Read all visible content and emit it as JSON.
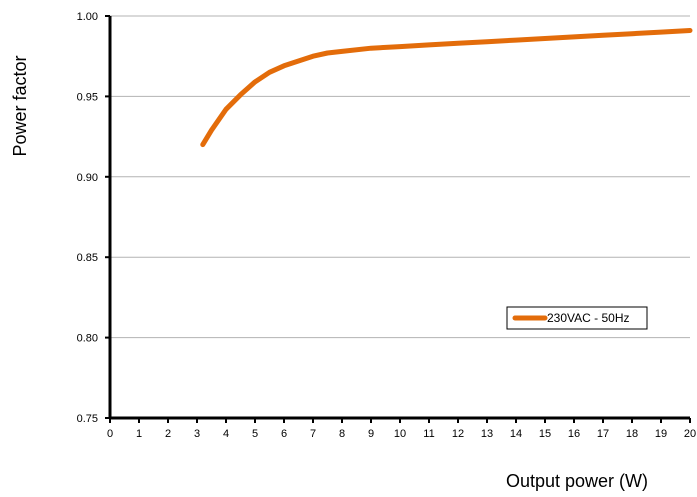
{
  "chart_data": {
    "type": "line",
    "title": "",
    "xlabel": "Output power (W)",
    "ylabel": "Power factor",
    "xlim": [
      0,
      20
    ],
    "ylim": [
      0.75,
      1.0
    ],
    "x_ticks": [
      "0",
      "1",
      "2",
      "3",
      "4",
      "5",
      "6",
      "7",
      "8",
      "9",
      "10",
      "11",
      "12",
      "13",
      "14",
      "15",
      "16",
      "17",
      "18",
      "19",
      "20"
    ],
    "y_ticks": [
      "0.75",
      "0.80",
      "0.85",
      "0.90",
      "0.95",
      "1.00"
    ],
    "grid": "horizontal",
    "legend_position": "right",
    "series": [
      {
        "name": "230VAC - 50Hz",
        "color": "#E36C0A",
        "x": [
          3.2,
          3.5,
          4.0,
          4.5,
          5.0,
          5.5,
          6.0,
          6.5,
          7.0,
          7.5,
          8.0,
          9.0,
          10.0,
          11.0,
          12.0,
          13.0,
          14.0,
          15.0,
          16.0,
          17.0,
          18.0,
          19.0,
          20.0
        ],
        "y": [
          0.92,
          0.929,
          0.942,
          0.951,
          0.959,
          0.965,
          0.969,
          0.972,
          0.975,
          0.977,
          0.978,
          0.98,
          0.981,
          0.982,
          0.983,
          0.984,
          0.985,
          0.986,
          0.987,
          0.988,
          0.989,
          0.99,
          0.991
        ]
      }
    ]
  }
}
